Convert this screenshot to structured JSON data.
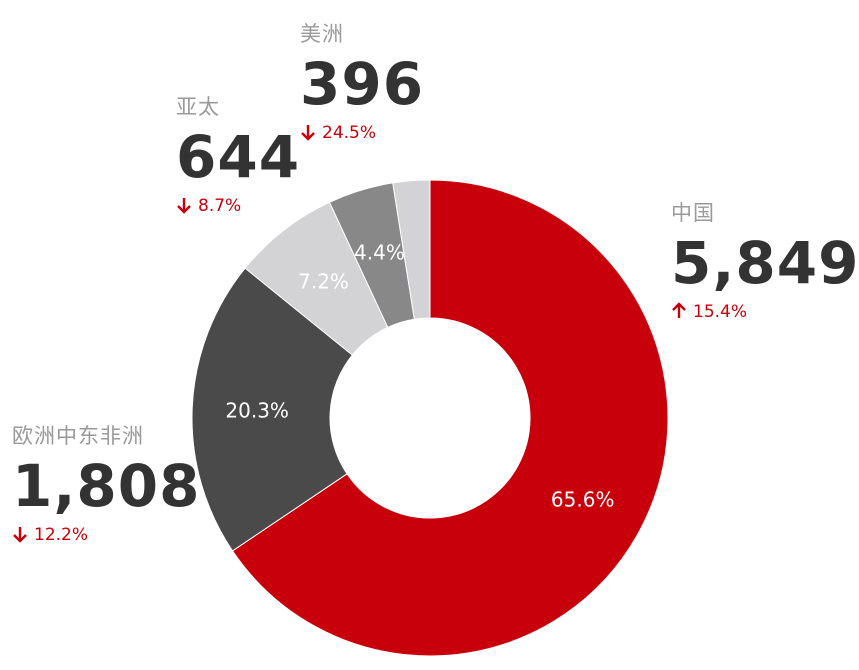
{
  "chart_data": {
    "type": "pie",
    "donut": true,
    "categories": [
      "中国",
      "欧洲中东非洲",
      "亚太",
      "美洲"
    ],
    "values": [
      5849,
      1808,
      644,
      396
    ],
    "percent_labels": [
      "65.6%",
      "20.3%",
      "7.2%",
      "4.4%"
    ],
    "value_labels": [
      "5,849",
      "1,808",
      "644",
      "396"
    ],
    "changes": [
      {
        "direction": "up",
        "text": "15.4%"
      },
      {
        "direction": "down",
        "text": "12.2%"
      },
      {
        "direction": "down",
        "text": "8.7%"
      },
      {
        "direction": "down",
        "text": "24.5%"
      }
    ],
    "colors": [
      "#c8000b",
      "#4a4a4a",
      "#d3d3d5",
      "#888888",
      "#d3d3d5"
    ],
    "extra_slice_color": "#d3d3d5",
    "change_color": "#c8000b",
    "legend": "none"
  },
  "callouts": {
    "china": {
      "name": "中国",
      "value": "5,849",
      "change": "15.4%",
      "dir": "up"
    },
    "emea": {
      "name": "欧洲中东非洲",
      "value": "1,808",
      "change": "12.2%",
      "dir": "down"
    },
    "apac": {
      "name": "亚太",
      "value": "644",
      "change": "8.7%",
      "dir": "down"
    },
    "americas": {
      "name": "美洲",
      "value": "396",
      "change": "24.5%",
      "dir": "down"
    }
  }
}
